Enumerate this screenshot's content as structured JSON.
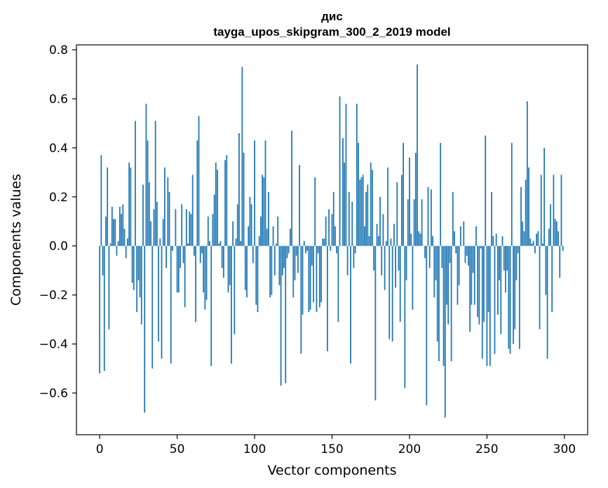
{
  "chart_data": {
    "type": "bar",
    "title": [
      "дис",
      "tayga_upos_skipgram_300_2_2019 model"
    ],
    "xlabel": "Vector components",
    "ylabel": "Components values",
    "xlim": [
      -15,
      315
    ],
    "ylim": [
      -0.77,
      0.82
    ],
    "xticks": [
      0,
      50,
      100,
      150,
      200,
      250,
      300
    ],
    "xtick_labels": [
      "0",
      "50",
      "100",
      "150",
      "200",
      "250",
      "300"
    ],
    "yticks": [
      -0.6,
      -0.4,
      -0.2,
      0.0,
      0.2,
      0.4,
      0.6,
      0.8
    ],
    "ytick_labels": [
      "−0.6",
      "−0.4",
      "−0.2",
      "0.0",
      "0.2",
      "0.4",
      "0.6",
      "0.8"
    ],
    "bar_color": "#1f77b4",
    "grid": false,
    "legend": "none",
    "x": "0..299",
    "values": [
      -0.52,
      0.37,
      -0.12,
      -0.51,
      0.12,
      0.32,
      -0.34,
      0.01,
      0.16,
      0.11,
      0.11,
      -0.04,
      0.02,
      0.16,
      0.13,
      0.17,
      0.07,
      -0.05,
      0.03,
      0.34,
      0.32,
      -0.15,
      -0.18,
      0.51,
      -0.27,
      -0.14,
      -0.21,
      -0.32,
      0.25,
      -0.68,
      0.58,
      0.43,
      0.26,
      0.1,
      -0.5,
      0.15,
      0.51,
      0.18,
      -0.39,
      0.03,
      -0.46,
      0.11,
      0.32,
      -0.09,
      0.28,
      0.22,
      -0.48,
      -0.02,
      0.0,
      0.15,
      -0.19,
      -0.19,
      -0.09,
      0.17,
      -0.07,
      -0.25,
      0.15,
      0.01,
      0.14,
      0.13,
      0.29,
      -0.04,
      -0.31,
      0.43,
      0.53,
      -0.07,
      -0.03,
      -0.19,
      -0.26,
      -0.22,
      0.12,
      0.02,
      -0.49,
      0.13,
      0.21,
      0.34,
      0.31,
      0.01,
      0.02,
      -0.09,
      -0.13,
      0.35,
      0.37,
      -0.19,
      -0.16,
      -0.48,
      0.1,
      -0.36,
      0.03,
      0.17,
      0.46,
      0.02,
      0.73,
      0.38,
      -0.18,
      -0.21,
      0.08,
      0.2,
      0.17,
      -0.07,
      0.43,
      -0.24,
      -0.27,
      0.04,
      0.12,
      0.29,
      0.28,
      0.43,
      0.07,
      0.22,
      -0.21,
      -0.2,
      0.08,
      -0.12,
      0.01,
      0.12,
      -0.16,
      -0.57,
      -0.12,
      -0.09,
      -0.56,
      -0.05,
      -0.03,
      0.07,
      0.47,
      -0.21,
      -0.14,
      -0.04,
      -0.11,
      0.33,
      -0.44,
      -0.28,
      0.02,
      -0.03,
      -0.02,
      -0.27,
      -0.26,
      -0.08,
      -0.23,
      0.28,
      -0.27,
      -0.03,
      -0.25,
      -0.23,
      0.03,
      0.03,
      0.12,
      -0.43,
      0.15,
      -0.02,
      0.13,
      0.22,
      0.08,
      -0.03,
      -0.31,
      0.61,
      0.0,
      0.44,
      0.34,
      0.58,
      -0.12,
      0.22,
      -0.48,
      0.18,
      -0.09,
      -0.03,
      0.58,
      0.42,
      0.27,
      0.28,
      0.29,
      0.08,
      0.22,
      0.25,
      0.04,
      0.34,
      0.31,
      -0.1,
      -0.63,
      0.09,
      0.04,
      0.2,
      -0.12,
      0.13,
      -0.18,
      0.02,
      0.32,
      -0.38,
      0.03,
      -0.39,
      0.09,
      -0.17,
      0.26,
      -0.1,
      -0.31,
      0.29,
      0.42,
      -0.58,
      -0.14,
      0.19,
      0.36,
      0.05,
      -0.26,
      0.19,
      0.38,
      0.74,
      0.06,
      0.05,
      0.19,
      0.0,
      -0.05,
      -0.65,
      0.24,
      -0.09,
      0.23,
      0.04,
      -0.21,
      -0.14,
      -0.39,
      -0.47,
      0.42,
      -0.09,
      -0.49,
      -0.7,
      -0.24,
      -0.32,
      -0.07,
      -0.47,
      0.22,
      0.06,
      -0.03,
      -0.24,
      -0.16,
      0.08,
      0.0,
      0.1,
      -0.07,
      -0.04,
      -0.08,
      -0.35,
      -0.24,
      -0.11,
      -0.24,
      0.08,
      -0.29,
      -0.32,
      -0.01,
      -0.46,
      -0.31,
      0.45,
      -0.49,
      -0.27,
      -0.49,
      0.22,
      0.04,
      -0.44,
      0.05,
      -0.28,
      -0.14,
      -0.36,
      0.04,
      -0.1,
      -0.19,
      -0.1,
      -0.42,
      -0.44,
      0.42,
      -0.4,
      -0.34,
      -0.14,
      -0.03,
      -0.42,
      0.24,
      0.1,
      0.06,
      0.27,
      0.59,
      0.32,
      0.03,
      0.01,
      0.02,
      -0.03,
      0.05,
      0.06,
      -0.34,
      0.29,
      0.01,
      0.4,
      -0.2,
      -0.46,
      0.07,
      0.17,
      -0.27,
      0.29,
      0.11,
      0.1,
      0.06,
      -0.13,
      0.29,
      -0.02
    ]
  }
}
